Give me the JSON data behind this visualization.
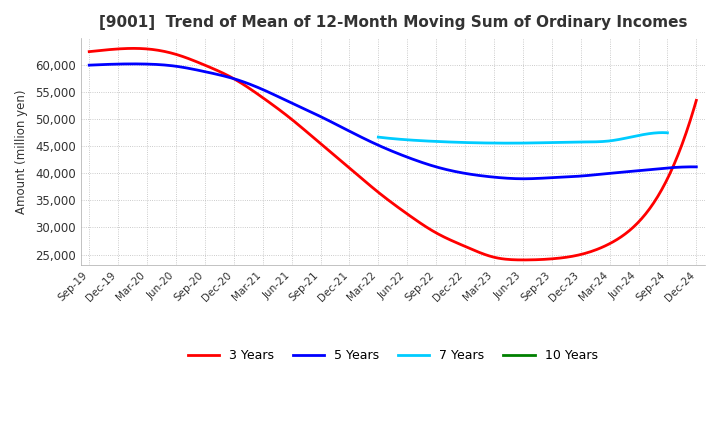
{
  "title": "[9001]  Trend of Mean of 12-Month Moving Sum of Ordinary Incomes",
  "ylabel": "Amount (million yen)",
  "ylim": [
    23000,
    65000
  ],
  "yticks": [
    25000,
    30000,
    35000,
    40000,
    45000,
    50000,
    55000,
    60000
  ],
  "background_color": "#ffffff",
  "grid_color": "#bbbbbb",
  "x_labels": [
    "Sep-19",
    "Dec-19",
    "Mar-20",
    "Jun-20",
    "Sep-20",
    "Dec-20",
    "Mar-21",
    "Jun-21",
    "Sep-21",
    "Dec-21",
    "Mar-22",
    "Jun-22",
    "Sep-22",
    "Dec-22",
    "Mar-23",
    "Jun-23",
    "Sep-23",
    "Dec-23",
    "Mar-24",
    "Jun-24",
    "Sep-24",
    "Dec-24"
  ],
  "series_3y": [
    62500,
    63000,
    63000,
    62000,
    60000,
    57500,
    54000,
    50000,
    45500,
    41000,
    36500,
    32500,
    29000,
    26500,
    24500,
    24000,
    24200,
    25000,
    27000,
    31000,
    39000,
    53500
  ],
  "series_5y": [
    60000,
    60200,
    60200,
    59800,
    58800,
    57500,
    55500,
    53000,
    50500,
    47800,
    45200,
    43000,
    41200,
    40000,
    39300,
    39000,
    39200,
    39500,
    40000,
    40500,
    41000,
    41200
  ],
  "series_7y": [
    null,
    null,
    null,
    null,
    null,
    null,
    null,
    null,
    null,
    null,
    46700,
    46200,
    45900,
    45700,
    45600,
    45600,
    45700,
    45800,
    46000,
    47000,
    47500,
    null
  ],
  "series_10y": [
    null,
    null,
    null,
    null,
    null,
    null,
    null,
    null,
    null,
    null,
    null,
    null,
    null,
    null,
    null,
    null,
    null,
    null,
    null,
    null,
    null,
    null
  ],
  "legend": [
    "3 Years",
    "5 Years",
    "7 Years",
    "10 Years"
  ],
  "legend_colors": [
    "#ff0000",
    "#0000ff",
    "#00ccff",
    "#008000"
  ]
}
